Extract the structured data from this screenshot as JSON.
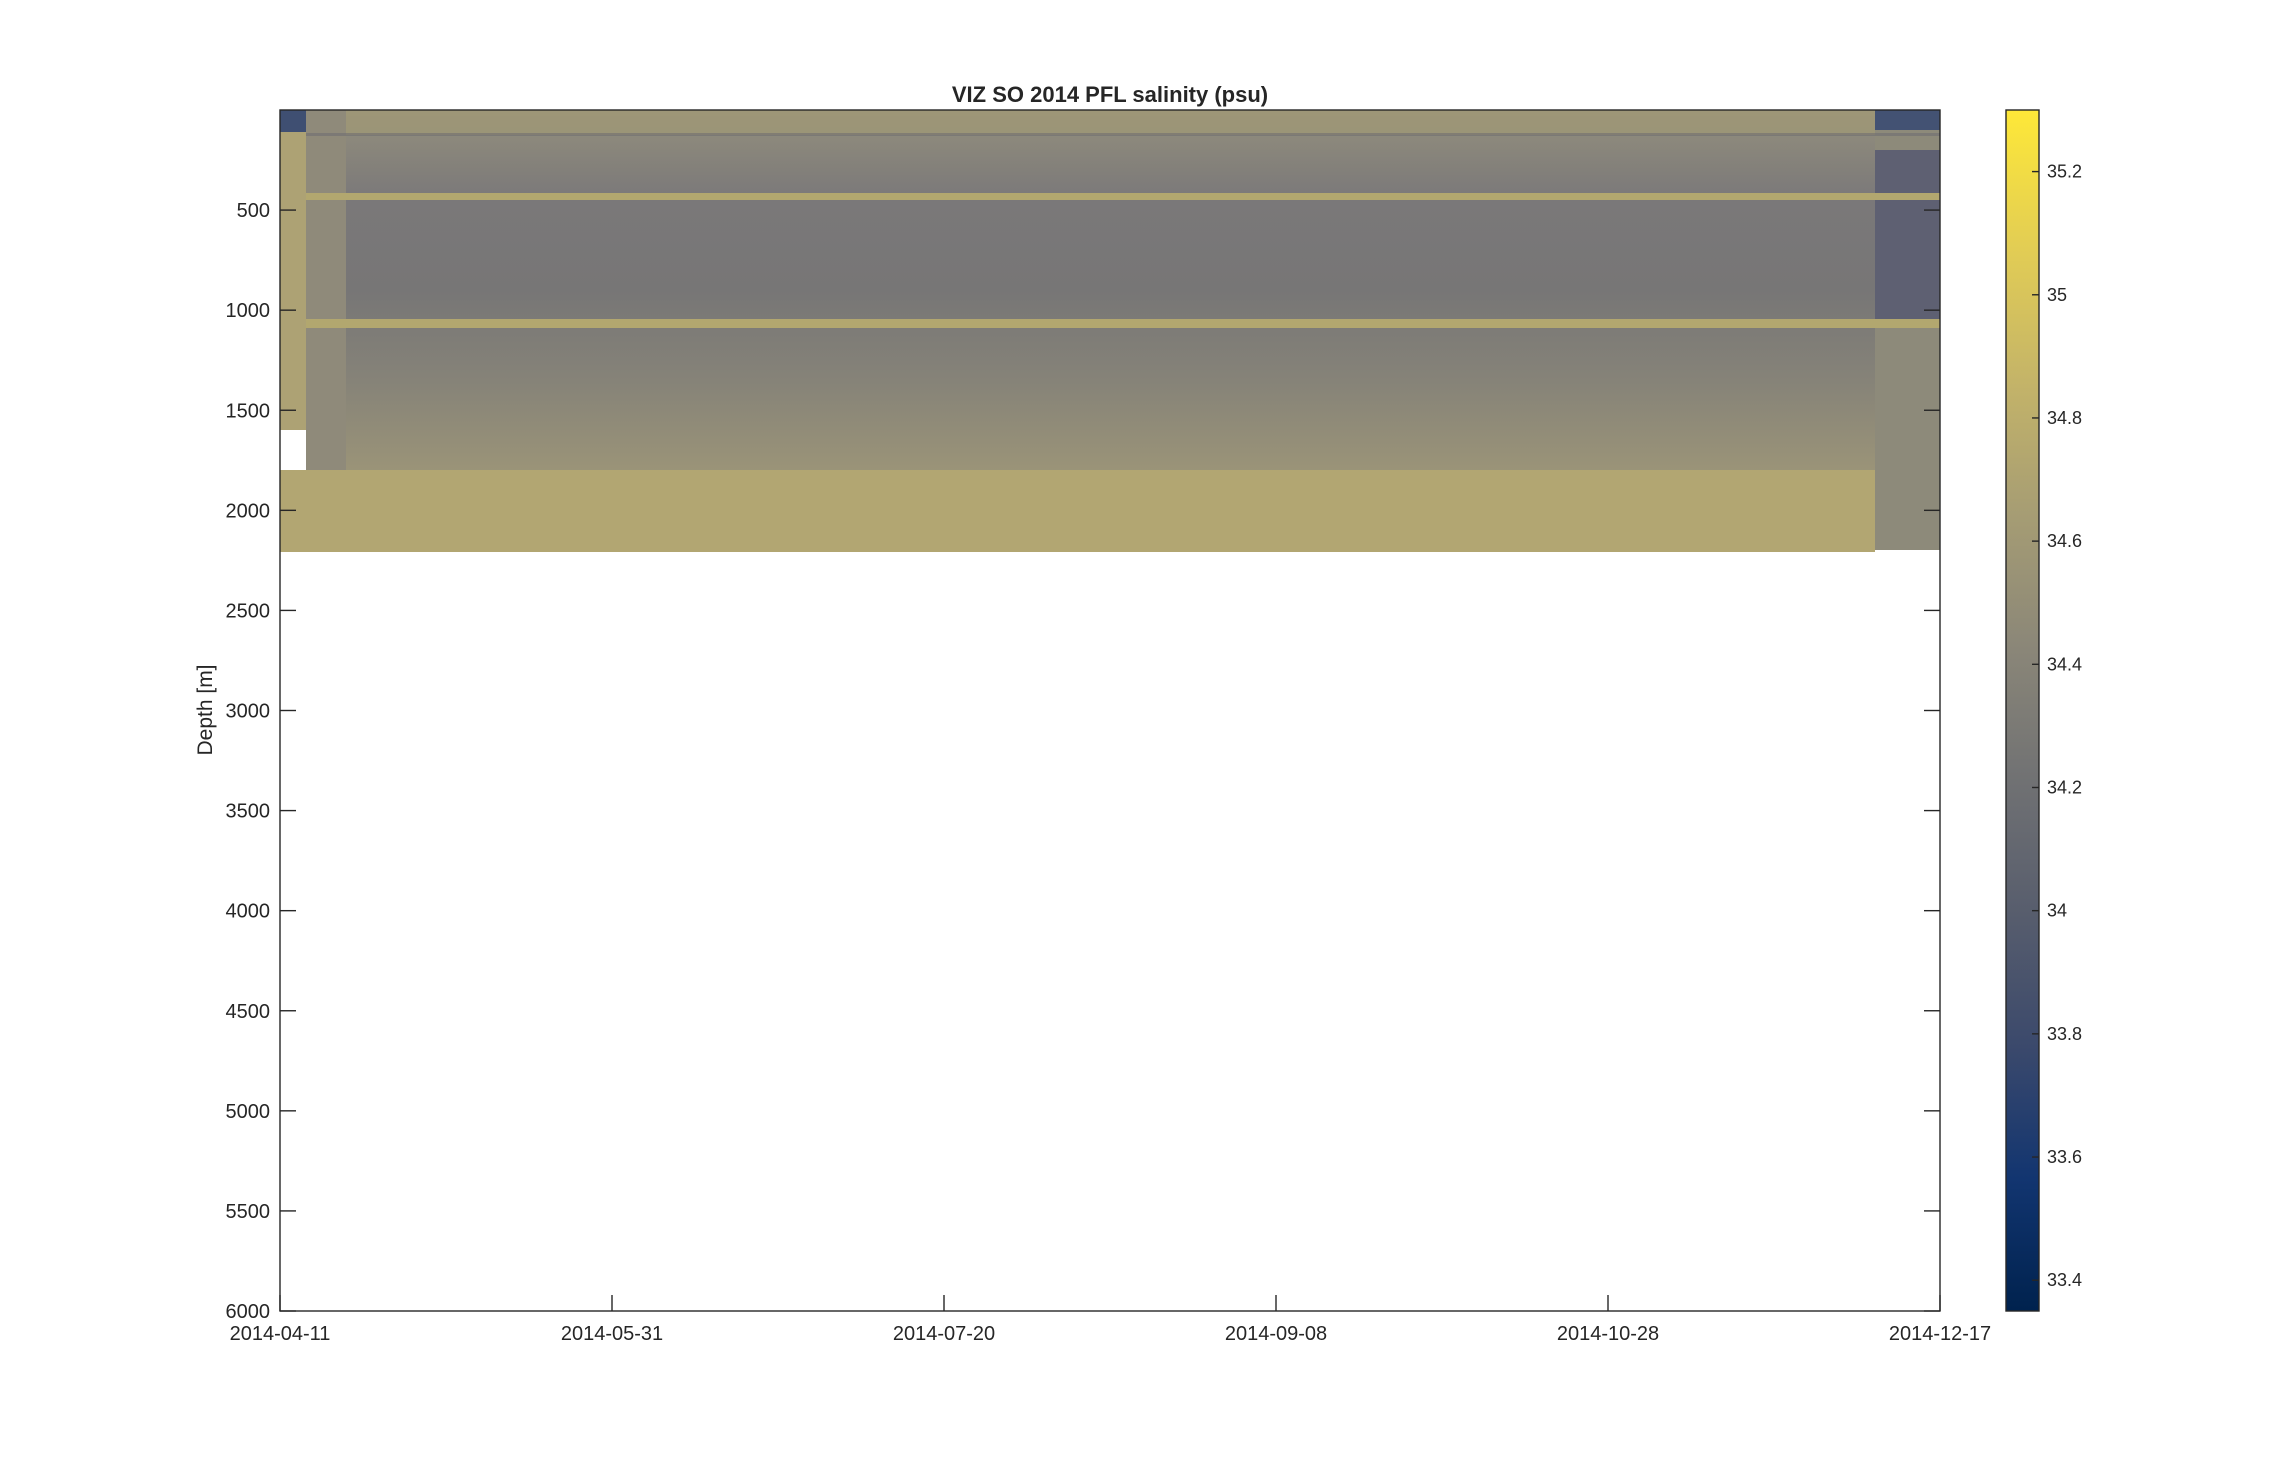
{
  "chart_data": {
    "type": "heatmap",
    "title": "VIZ SO 2014 PFL salinity (psu)",
    "xlabel": "",
    "ylabel": "Depth [m]",
    "x_start": "2014-04-11",
    "x_end": "2014-12-17",
    "x_tick_labels": [
      "2014-04-11",
      "2014-05-31",
      "2014-07-20",
      "2014-09-08",
      "2014-10-28",
      "2014-12-17"
    ],
    "ylim": [
      0,
      6000
    ],
    "y_reversed": true,
    "y_ticks": [
      500,
      1000,
      1500,
      2000,
      2500,
      3000,
      3500,
      4000,
      4500,
      5000,
      5500,
      6000
    ],
    "y_tick_labels": [
      "500",
      "1000",
      "1500",
      "2000",
      "2500",
      "3000",
      "3500",
      "4000",
      "4500",
      "5000",
      "5500",
      "6000"
    ],
    "colorbar": {
      "clim": [
        33.35,
        35.3
      ],
      "ticks": [
        33.4,
        33.6,
        33.8,
        34,
        34.2,
        34.4,
        34.6,
        34.8,
        35,
        35.2
      ],
      "tick_labels": [
        "33.4",
        "33.6",
        "33.8",
        "34",
        "34.2",
        "34.4",
        "34.6",
        "34.8",
        "35",
        "35.2"
      ],
      "colormap": "cividis",
      "colors": [
        "#00224e",
        "#123570",
        "#3b496c",
        "#575d6d",
        "#707173",
        "#8a8678",
        "#a59c74",
        "#c3b369",
        "#e1cc55",
        "#fee838"
      ]
    },
    "data_max_depth": 2200,
    "profiles": [
      {
        "date": "2014-04-11",
        "mixed_layer_salinity": 33.95,
        "deep_salinity": 34.72
      },
      {
        "date": "2014-04-15",
        "mixed_layer_salinity": 34.74,
        "deep_salinity": 34.74
      },
      {
        "date": "2014-04-25",
        "mixed_layer_salinity": 34.55,
        "deep_salinity": 34.72
      },
      {
        "date": "2014-05-31",
        "mixed_layer_salinity": 34.55,
        "deep_salinity": 34.72
      },
      {
        "date": "2014-07-20",
        "mixed_layer_salinity": 34.55,
        "deep_salinity": 34.72
      },
      {
        "date": "2014-09-08",
        "mixed_layer_salinity": 34.55,
        "deep_salinity": 34.72
      },
      {
        "date": "2014-10-28",
        "mixed_layer_salinity": 34.55,
        "deep_salinity": 34.72
      },
      {
        "date": "2014-12-07",
        "mixed_layer_salinity": 34.2,
        "deep_salinity": 34.72
      }
    ],
    "grid": false
  }
}
